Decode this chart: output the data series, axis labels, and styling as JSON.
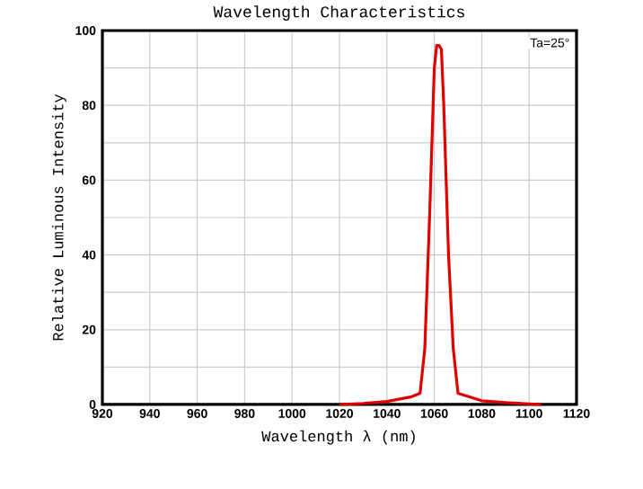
{
  "chart_data": {
    "type": "line",
    "title": "Wavelength Characteristics",
    "xlabel": "Wavelength λ (nm)",
    "ylabel": "Relative Luminous Intensity",
    "annotations": [
      "Ta=25°"
    ],
    "series": [
      {
        "color": "#e00000",
        "x": [
          1020,
          1030,
          1040,
          1050,
          1054,
          1056,
          1058,
          1060,
          1061,
          1062,
          1063,
          1064,
          1066,
          1068,
          1070,
          1080,
          1090,
          1105
        ],
        "values": [
          0,
          0.3,
          0.8,
          2,
          3,
          15,
          50,
          90,
          96,
          96,
          95,
          80,
          40,
          15,
          3,
          1,
          0.5,
          0
        ]
      }
    ],
    "xlim": [
      920,
      1120
    ],
    "xticks": [
      920,
      940,
      960,
      980,
      1000,
      1020,
      1040,
      1060,
      1080,
      1100,
      1120
    ],
    "ylim": [
      0,
      100
    ],
    "yticks": [
      0,
      {
        "value": 10,
        "label": null
      },
      20,
      {
        "value": 30,
        "label": null
      },
      40,
      {
        "value": 50,
        "label": null
      },
      60,
      {
        "value": 70,
        "label": null
      },
      80,
      {
        "value": 90,
        "label": null
      },
      100
    ],
    "grid": true,
    "marker": "none",
    "line_style": "solid"
  }
}
